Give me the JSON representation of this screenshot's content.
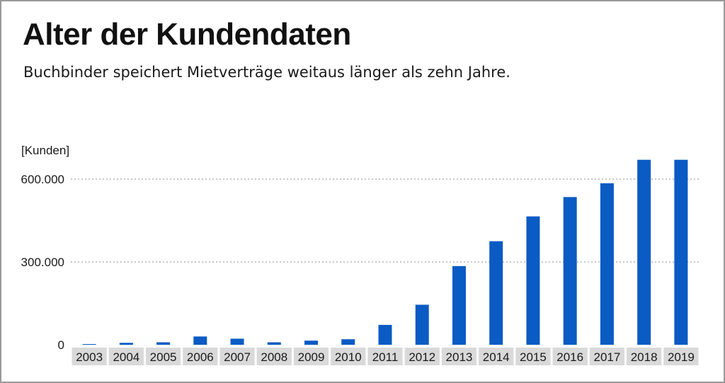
{
  "header": {
    "title": "Alter der Kundendaten",
    "subtitle": "Buchbinder speichert Mietverträge weitaus länger als zehn Jahre."
  },
  "colors": {
    "bar": "#0a5bc4",
    "grid": "#b5b5b5",
    "tick_bg": "#d9d9d9",
    "border": "#9a9a9a"
  },
  "chart_data": {
    "type": "bar",
    "title": "Alter der Kundendaten",
    "subtitle": "Buchbinder speichert Mietverträge weitaus länger als zehn Jahre.",
    "ylabel": "[Kunden]",
    "xlabel": "",
    "categories": [
      "2003",
      "2004",
      "2005",
      "2006",
      "2007",
      "2008",
      "2009",
      "2010",
      "2011",
      "2012",
      "2013",
      "2014",
      "2015",
      "2016",
      "2017",
      "2018",
      "2019"
    ],
    "values": [
      2000,
      7000,
      9000,
      30000,
      22000,
      9000,
      15000,
      20000,
      72000,
      145000,
      285000,
      375000,
      465000,
      535000,
      585000,
      670000,
      670000
    ],
    "ylim": [
      0,
      600000
    ],
    "yticks": [
      0,
      300000,
      600000
    ],
    "ytick_labels": [
      "0",
      "300.000",
      "600.000"
    ],
    "grid": true,
    "legend": "none"
  }
}
